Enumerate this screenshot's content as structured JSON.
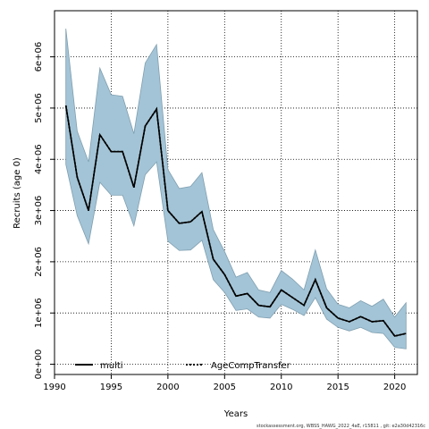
{
  "chart_data": {
    "type": "line",
    "xlabel": "Years",
    "ylabel": "Recruits (age 0)",
    "xlim": [
      1990,
      2022
    ],
    "ylim": [
      -200000,
      6900000
    ],
    "grid": true,
    "legend_placement": "bottom-left",
    "x_ticks": [
      1990,
      1995,
      2000,
      2005,
      2010,
      2015,
      2020
    ],
    "x_tick_labels": [
      "1990",
      "1995",
      "2000",
      "2005",
      "2010",
      "2015",
      "2020"
    ],
    "y_ticks": [
      0,
      1000000,
      2000000,
      3000000,
      4000000,
      5000000,
      6000000
    ],
    "y_tick_labels": [
      "0e+00",
      "1e+06",
      "2e+06",
      "3e+06",
      "4e+06",
      "5e+06",
      "6e+06"
    ],
    "x": [
      1991,
      1992,
      1993,
      1994,
      1995,
      1996,
      1997,
      1998,
      1999,
      2000,
      2001,
      2002,
      2003,
      2004,
      2005,
      2006,
      2007,
      2008,
      2009,
      2010,
      2011,
      2012,
      2013,
      2014,
      2015,
      2016,
      2017,
      2018,
      2019,
      2020,
      2021
    ],
    "series": [
      {
        "name": "multi",
        "style": "solid",
        "color": "#000000",
        "values": [
          5050000,
          3650000,
          3000000,
          4480000,
          4150000,
          4150000,
          3450000,
          4650000,
          4980000,
          3000000,
          2750000,
          2780000,
          2980000,
          2050000,
          1750000,
          1330000,
          1380000,
          1150000,
          1120000,
          1450000,
          1300000,
          1150000,
          1650000,
          1100000,
          900000,
          830000,
          930000,
          830000,
          850000,
          550000,
          600000
        ],
        "lower": [
          3900000,
          2900000,
          2350000,
          3550000,
          3300000,
          3300000,
          2700000,
          3700000,
          3950000,
          2400000,
          2220000,
          2230000,
          2420000,
          1650000,
          1400000,
          1050000,
          1080000,
          920000,
          900000,
          1170000,
          1070000,
          950000,
          1300000,
          880000,
          720000,
          650000,
          720000,
          620000,
          600000,
          330000,
          300000
        ],
        "upper": [
          6550000,
          4550000,
          3950000,
          5780000,
          5260000,
          5230000,
          4500000,
          5880000,
          6240000,
          3800000,
          3430000,
          3470000,
          3740000,
          2630000,
          2200000,
          1700000,
          1790000,
          1450000,
          1400000,
          1830000,
          1660000,
          1450000,
          2230000,
          1470000,
          1170000,
          1100000,
          1240000,
          1130000,
          1270000,
          920000,
          1200000
        ]
      },
      {
        "name": "AgeCompTransfer",
        "style": "dotted",
        "color": "#000000",
        "values": [
          5050000,
          3650000,
          3000000,
          4480000,
          4150000,
          4150000,
          3450000,
          4650000,
          4980000,
          3000000,
          2750000,
          2780000,
          2980000,
          2050000,
          1750000,
          1330000,
          1380000,
          1150000,
          1120000,
          1450000,
          1300000,
          1150000,
          1650000,
          1100000,
          900000,
          830000,
          930000,
          830000,
          850000,
          550000,
          600000
        ]
      }
    ],
    "band_color": "#a3c4d6",
    "footnote": "stockassessment.org, WBSS_HAWG_2022_4aE, r15811 , git: e2a30d42316c"
  }
}
